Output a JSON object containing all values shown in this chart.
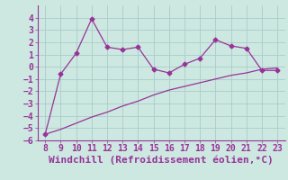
{
  "xlabel": "Windchill (Refroidissement éolien,°C)",
  "x_values": [
    8,
    9,
    10,
    11,
    12,
    13,
    14,
    15,
    16,
    17,
    18,
    19,
    20,
    21,
    22,
    23
  ],
  "y_line1": [
    -5.5,
    -0.6,
    1.1,
    3.9,
    1.6,
    1.4,
    1.6,
    -0.2,
    -0.5,
    0.2,
    0.7,
    2.2,
    1.7,
    1.5,
    -0.3,
    -0.3
  ],
  "y_line2": [
    -5.5,
    -5.1,
    -4.6,
    -4.1,
    -3.7,
    -3.2,
    -2.8,
    -2.3,
    -1.9,
    -1.6,
    -1.3,
    -1.0,
    -0.7,
    -0.5,
    -0.2,
    -0.1
  ],
  "line_color": "#993399",
  "marker": "D",
  "marker_size": 2.5,
  "ylim": [
    -6,
    5
  ],
  "xlim": [
    7.5,
    23.5
  ],
  "yticks": [
    -6,
    -5,
    -4,
    -3,
    -2,
    -1,
    0,
    1,
    2,
    3,
    4
  ],
  "xticks": [
    8,
    9,
    10,
    11,
    12,
    13,
    14,
    15,
    16,
    17,
    18,
    19,
    20,
    21,
    22,
    23
  ],
  "bg_color": "#cce8e0",
  "grid_color": "#aacccc",
  "font_color": "#993399",
  "tick_font_size": 7,
  "xlabel_font_size": 8
}
